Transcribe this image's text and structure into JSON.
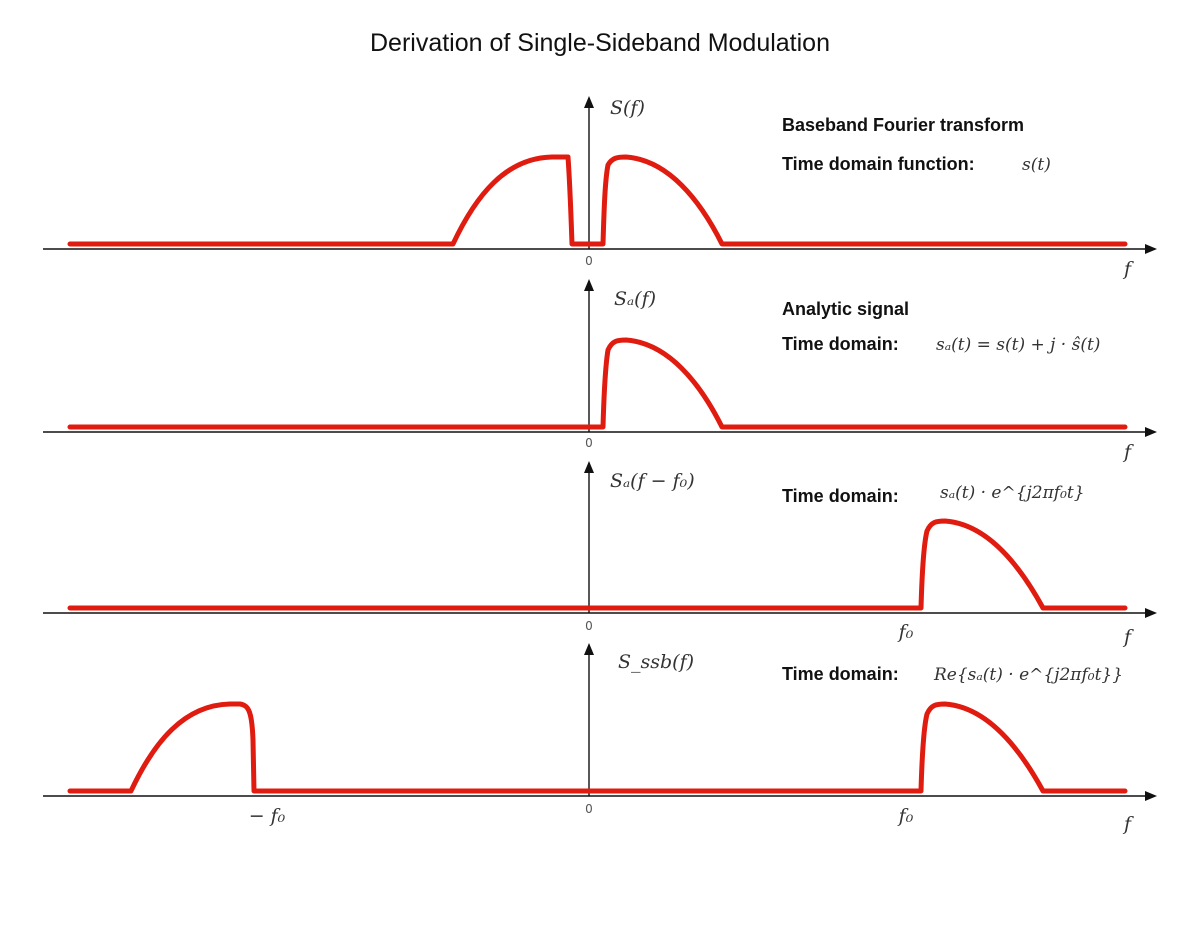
{
  "title": "Derivation of Single-Sideband Modulation",
  "colors": {
    "signal": "#e01b0f",
    "axis": "#111111",
    "text": "#111111"
  },
  "panels": [
    {
      "ylabel": "S(f)",
      "heading": "Baseband Fourier transform",
      "domain_label": "Time domain function:",
      "formula": "s(t)",
      "zero_label": "0",
      "xlabel": "f"
    },
    {
      "ylabel": "Sₐ(f)",
      "heading": "Analytic signal",
      "domain_label": "Time domain:",
      "formula": "sₐ(t) = s(t) + j · ŝ(t)",
      "zero_label": "0",
      "xlabel": "f"
    },
    {
      "ylabel": "Sₐ(f − f₀)",
      "domain_label": "Time domain:",
      "formula": "sₐ(t) · e^{j2πf₀t}",
      "zero_label": "0",
      "xlabel": "f",
      "f0_label": "f₀"
    },
    {
      "ylabel": "S_ssb(f)",
      "domain_label": "Time domain:",
      "formula": "Re{sₐ(t) · e^{j2πf₀t}}",
      "zero_label": "0",
      "xlabel": "f",
      "f0_label": "f₀",
      "neg_f0_label": "− f₀"
    }
  ]
}
